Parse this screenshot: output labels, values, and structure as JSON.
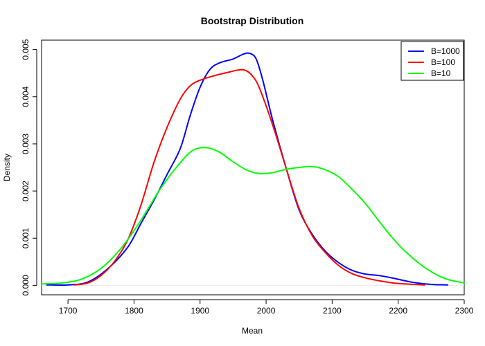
{
  "chart_data": {
    "type": "line",
    "title": "Bootstrap Distribution",
    "xlabel": "Mean",
    "ylabel": "Density",
    "xlim": [
      1660,
      2300
    ],
    "ylim": [
      -0.0002,
      0.0052
    ],
    "x_ticks": [
      1700,
      1800,
      1900,
      2000,
      2100,
      2200,
      2300
    ],
    "x_tick_labels": [
      "1700",
      "1800",
      "1900",
      "2000",
      "2100",
      "2200",
      "2300"
    ],
    "y_ticks": [
      0,
      0.001,
      0.002,
      0.003,
      0.004,
      0.005
    ],
    "y_tick_labels": [
      "0.000",
      "0.001",
      "0.002",
      "0.003",
      "0.004",
      "0.005"
    ],
    "zero_line": true,
    "grid": false,
    "legend_position": "top-right",
    "series": [
      {
        "name": "B=1000",
        "color": "#0000ff",
        "x": [
          1668,
          1700,
          1730,
          1760,
          1790,
          1810,
          1830,
          1850,
          1870,
          1885,
          1900,
          1915,
          1930,
          1950,
          1965,
          1975,
          1985,
          1995,
          2010,
          2030,
          2050,
          2070,
          2090,
          2110,
          2130,
          2150,
          2170,
          2190,
          2220,
          2250,
          2275
        ],
        "y": [
          1e-05,
          1e-05,
          7e-05,
          0.00035,
          0.0008,
          0.0013,
          0.0018,
          0.00235,
          0.0029,
          0.0036,
          0.0042,
          0.00458,
          0.00472,
          0.0048,
          0.0049,
          0.00492,
          0.0048,
          0.00435,
          0.0035,
          0.0025,
          0.0016,
          0.00108,
          0.00072,
          0.00048,
          0.00032,
          0.00024,
          0.00021,
          0.00016,
          7e-05,
          2e-05,
          1e-05
        ]
      },
      {
        "name": "B=100",
        "color": "#ff0000",
        "x": [
          1710,
          1730,
          1750,
          1770,
          1790,
          1810,
          1830,
          1850,
          1870,
          1885,
          1900,
          1920,
          1940,
          1960,
          1970,
          1980,
          1990,
          2010,
          2030,
          2050,
          2070,
          2090,
          2110,
          2130,
          2150,
          2170,
          2200,
          2240
        ],
        "y": [
          1e-05,
          5e-05,
          0.00021,
          0.0005,
          0.00095,
          0.00168,
          0.0026,
          0.00335,
          0.00395,
          0.00423,
          0.00435,
          0.00444,
          0.00451,
          0.00457,
          0.00455,
          0.00443,
          0.00418,
          0.0034,
          0.0025,
          0.00163,
          0.00105,
          0.00069,
          0.00042,
          0.00025,
          0.00016,
          0.0001,
          4e-05,
          1e-05
        ]
      },
      {
        "name": "B=10",
        "color": "#00ff00",
        "x": [
          1660,
          1690,
          1720,
          1750,
          1780,
          1810,
          1840,
          1870,
          1890,
          1910,
          1930,
          1950,
          1970,
          1990,
          2010,
          2030,
          2050,
          2070,
          2090,
          2110,
          2130,
          2150,
          2170,
          2190,
          2210,
          2240,
          2270,
          2300
        ],
        "y": [
          3e-05,
          5e-05,
          0.00013,
          0.00036,
          0.00078,
          0.00137,
          0.00205,
          0.0026,
          0.00287,
          0.00292,
          0.00282,
          0.00262,
          0.00245,
          0.00237,
          0.00239,
          0.00246,
          0.0025,
          0.00252,
          0.00245,
          0.0023,
          0.00204,
          0.00174,
          0.00138,
          0.00103,
          0.00073,
          0.00038,
          0.00015,
          5e-05
        ]
      }
    ]
  }
}
